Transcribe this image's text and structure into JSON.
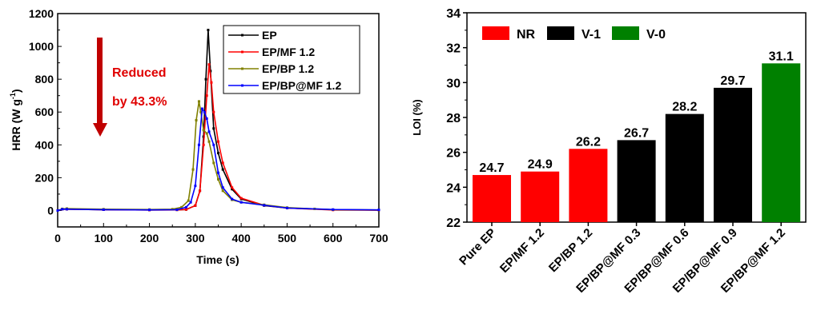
{
  "chart_data": [
    {
      "type": "line",
      "xlabel": "Time (s)",
      "ylabel": "HRR (W g-1)",
      "ylabel_main": "HRR (W g",
      "ylabel_sup": "-1",
      "ylabel_close": ")",
      "xlim": [
        0,
        700
      ],
      "ylim": [
        -100,
        1200
      ],
      "xticks": [
        "0",
        "100",
        "200",
        "300",
        "400",
        "500",
        "600",
        "700"
      ],
      "yticks": [
        "0",
        "200",
        "400",
        "600",
        "800",
        "1000",
        "1200"
      ],
      "legend_position": "top-right",
      "annotation": {
        "line1": "Reduced",
        "line2": "by 43.3%",
        "color": "#e00000",
        "arrow_color": "#c00000"
      },
      "series": [
        {
          "name": "EP",
          "color": "#000000",
          "x": [
            0,
            10,
            20,
            100,
            200,
            260,
            280,
            300,
            310,
            318,
            323,
            328,
            333,
            340,
            350,
            360,
            380,
            400,
            450,
            500,
            600,
            700
          ],
          "y": [
            0,
            8,
            8,
            5,
            3,
            4,
            6,
            30,
            120,
            450,
            800,
            1100,
            850,
            500,
            350,
            250,
            130,
            70,
            30,
            15,
            5,
            3
          ]
        },
        {
          "name": "EP/MF 1.2",
          "color": "#ff0000",
          "x": [
            0,
            10,
            20,
            100,
            200,
            260,
            280,
            300,
            310,
            318,
            325,
            330,
            335,
            340,
            350,
            360,
            380,
            400,
            450,
            500,
            600,
            700
          ],
          "y": [
            0,
            8,
            8,
            5,
            3,
            4,
            6,
            30,
            120,
            400,
            700,
            890,
            780,
            600,
            420,
            290,
            140,
            75,
            32,
            15,
            3,
            2
          ]
        },
        {
          "name": "EP/BP 1.2",
          "color": "#808000",
          "x": [
            0,
            10,
            20,
            100,
            200,
            250,
            270,
            285,
            295,
            302,
            308,
            312,
            318,
            325,
            330,
            340,
            350,
            360,
            380,
            400,
            450,
            500,
            560,
            600,
            700
          ],
          "y": [
            0,
            10,
            12,
            8,
            6,
            8,
            20,
            60,
            250,
            550,
            665,
            600,
            490,
            470,
            420,
            290,
            190,
            120,
            65,
            50,
            35,
            18,
            10,
            5,
            3
          ]
        },
        {
          "name": "EP/BP@MF 1.2",
          "color": "#0000ff",
          "x": [
            0,
            10,
            20,
            100,
            200,
            260,
            280,
            290,
            300,
            308,
            315,
            320,
            325,
            330,
            340,
            350,
            360,
            380,
            400,
            450,
            500,
            600,
            700
          ],
          "y": [
            0,
            8,
            8,
            5,
            4,
            5,
            20,
            50,
            150,
            400,
            620,
            600,
            560,
            480,
            400,
            230,
            140,
            70,
            50,
            32,
            15,
            6,
            4
          ]
        }
      ]
    },
    {
      "type": "bar",
      "ylabel": "LOI (%)",
      "ylim": [
        22,
        34
      ],
      "yticks": [
        "22",
        "24",
        "26",
        "28",
        "30",
        "32",
        "34"
      ],
      "categories": [
        "Pure EP",
        "EP/MF 1.2",
        "EP/BP 1.2",
        "EP/BP@MF 0.3",
        "EP/BP@MF 0.6",
        "EP/BP@MF 0.9",
        "EP/BP@MF 1.2"
      ],
      "values": [
        24.7,
        24.9,
        26.2,
        26.7,
        28.2,
        29.7,
        31.1
      ],
      "labels": [
        "24.7",
        "24.9",
        "26.2",
        "26.7",
        "28.2",
        "29.7",
        "31.1"
      ],
      "classes": [
        "NR",
        "NR",
        "NR",
        "V-1",
        "V-1",
        "V-1",
        "V-0"
      ],
      "legend": [
        {
          "name": "NR",
          "color": "#ff0000"
        },
        {
          "name": "V-1",
          "color": "#000000"
        },
        {
          "name": "V-0",
          "color": "#008000"
        }
      ],
      "legend_position": "top-left"
    }
  ]
}
